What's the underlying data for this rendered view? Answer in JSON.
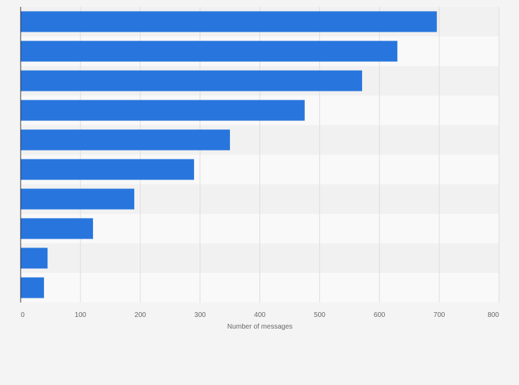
{
  "chart_data": {
    "type": "bar",
    "orientation": "horizontal",
    "title": "",
    "xlabel": "Number of messages",
    "ylabel": "",
    "categories": [
      "",
      "",
      "",
      "",
      "",
      "",
      "",
      "",
      "",
      ""
    ],
    "values": [
      696,
      630,
      571,
      475,
      350,
      290,
      190,
      121,
      45,
      39
    ],
    "xlim": [
      0,
      800
    ],
    "x_ticks": [
      0,
      100,
      200,
      300,
      400,
      500,
      600,
      700,
      800
    ],
    "grid": true,
    "legend": "none",
    "colors": {
      "bar": "#2876dd",
      "band_a": "#f1f1f1",
      "band_b": "#f9f9f9",
      "grid": "#dddddd",
      "axis": "#333333",
      "text": "#666666",
      "background": "#f4f4f4"
    }
  }
}
